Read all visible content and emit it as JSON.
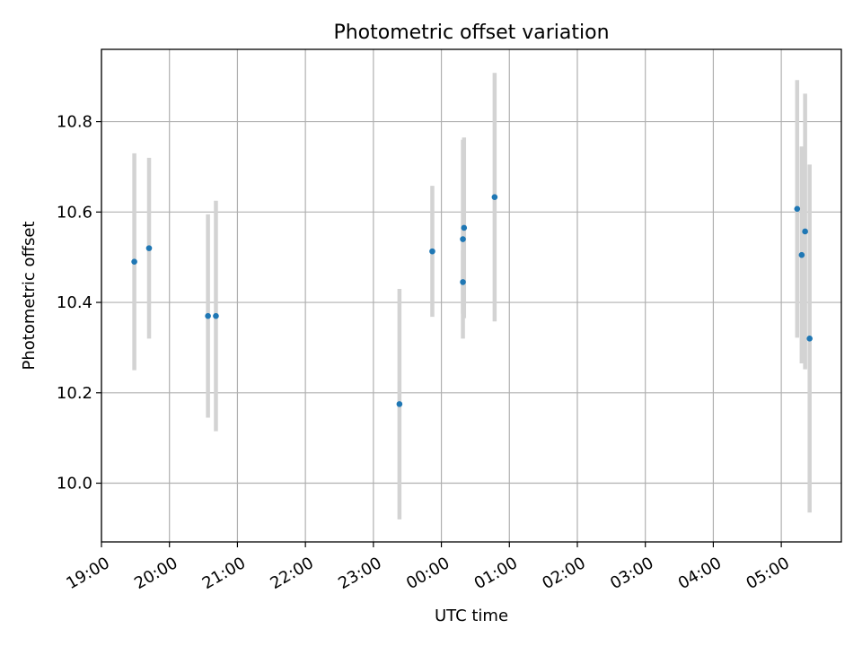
{
  "chart_data": {
    "type": "scatter",
    "title": "Photometric offset variation",
    "xlabel": "UTC time",
    "ylabel": "Photometric offset",
    "x_axis_type": "time",
    "xlim": [
      "19:00",
      "05:53"
    ],
    "ylim": [
      9.87,
      10.96
    ],
    "x_ticks": [
      "19:00",
      "20:00",
      "21:00",
      "22:00",
      "23:00",
      "00:00",
      "01:00",
      "02:00",
      "03:00",
      "04:00",
      "05:00"
    ],
    "y_ticks": [
      "10.0",
      "10.2",
      "10.4",
      "10.6",
      "10.8"
    ],
    "grid": true,
    "legend": "none",
    "point_color": "#1f77b4",
    "errorbar_color": "#d3d3d3",
    "series": [
      {
        "points": [
          {
            "x": "19:29",
            "y": 10.49,
            "err": 0.24
          },
          {
            "x": "19:42",
            "y": 10.52,
            "err": 0.2
          },
          {
            "x": "20:34",
            "y": 10.37,
            "err": 0.225
          },
          {
            "x": "20:41",
            "y": 10.37,
            "err": 0.255
          },
          {
            "x": "23:23",
            "y": 10.175,
            "err": 0.255
          },
          {
            "x": "23:52",
            "y": 10.513,
            "err": 0.145
          },
          {
            "x": "00:19",
            "y": 10.54,
            "err": 0.22
          },
          {
            "x": "00:19",
            "y": 10.445,
            "err": 0.07
          },
          {
            "x": "00:20",
            "y": 10.565,
            "err": 0.2
          },
          {
            "x": "00:47",
            "y": 10.633,
            "err": 0.275
          },
          {
            "x": "05:14",
            "y": 10.607,
            "err": 0.285
          },
          {
            "x": "05:18",
            "y": 10.505,
            "err": 0.24
          },
          {
            "x": "05:21",
            "y": 10.557,
            "err": 0.305
          },
          {
            "x": "05:25",
            "y": 10.32,
            "err": 0.385
          }
        ]
      }
    ]
  }
}
